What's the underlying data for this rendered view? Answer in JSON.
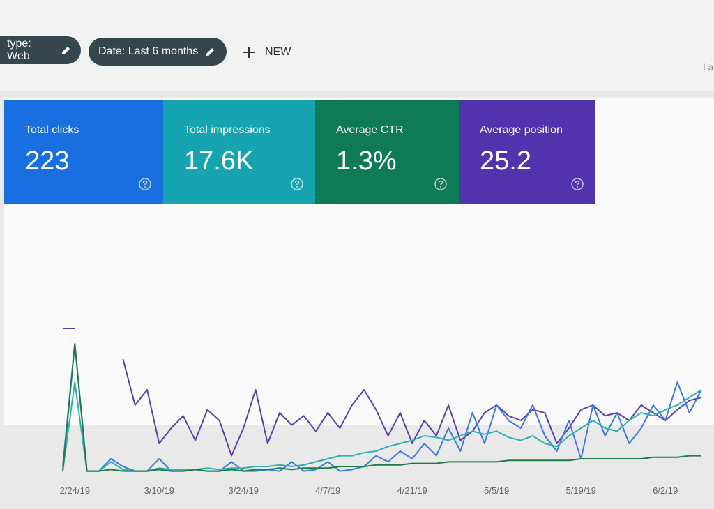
{
  "filters": [
    "type: Web",
    "Date: Last 6 months"
  ],
  "new_button": "NEW",
  "header_right_text": "La",
  "metrics": [
    {
      "label": "Total clicks",
      "value": "223",
      "color": "#1a6fe0"
    },
    {
      "label": "Total impressions",
      "value": "17.6K",
      "color": "#16a5b0"
    },
    {
      "label": "Average CTR",
      "value": "1.3%",
      "color": "#0e7a56"
    },
    {
      "label": "Average position",
      "value": "25.2",
      "color": "#5133ad"
    }
  ],
  "performance_chart": {
    "type": "line",
    "ylim": [
      0,
      100
    ],
    "x_labels": [
      "2/24/19",
      "3/10/19",
      "3/24/19",
      "4/7/19",
      "4/21/19",
      "5/5/19",
      "5/19/19",
      "6/2/19"
    ],
    "series": [
      {
        "color": "#5b3fb0",
        "values": [
          95,
          95,
          null,
          null,
          null,
          75,
          45,
          55,
          20,
          30,
          38,
          22,
          42,
          35,
          12,
          30,
          55,
          20,
          40,
          32,
          38,
          28,
          40,
          30,
          45,
          55,
          42,
          25,
          40,
          20,
          35,
          25,
          45,
          22,
          28,
          40,
          45,
          38,
          35,
          42,
          40,
          20,
          30,
          42,
          45,
          38,
          40,
          35,
          45,
          40,
          35,
          42,
          48,
          50
        ]
      },
      {
        "color": "#3b7be0",
        "values": [
          5,
          85,
          2,
          2,
          10,
          5,
          2,
          2,
          10,
          2,
          2,
          3,
          2,
          2,
          8,
          2,
          2,
          3,
          2,
          8,
          2,
          3,
          8,
          2,
          3,
          5,
          12,
          8,
          15,
          10,
          20,
          12,
          30,
          15,
          40,
          20,
          45,
          35,
          30,
          45,
          25,
          15,
          35,
          10,
          45,
          25,
          40,
          20,
          30,
          45,
          35,
          60,
          40,
          55
        ]
      },
      {
        "color": "#2fb0b0",
        "values": [
          2,
          60,
          2,
          2,
          8,
          3,
          2,
          2,
          4,
          3,
          3,
          3,
          4,
          3,
          4,
          4,
          5,
          5,
          6,
          5,
          6,
          8,
          10,
          12,
          12,
          14,
          15,
          18,
          20,
          22,
          25,
          24,
          22,
          25,
          28,
          26,
          28,
          24,
          22,
          25,
          20,
          18,
          25,
          30,
          35,
          30,
          28,
          35,
          40,
          38,
          42,
          45,
          50,
          55
        ]
      },
      {
        "color": "#1f7a4a",
        "values": [
          2,
          85,
          2,
          2,
          3,
          2,
          2,
          2,
          3,
          2,
          2,
          3,
          2,
          2,
          3,
          2,
          3,
          3,
          4,
          3,
          4,
          4,
          4,
          5,
          5,
          5,
          6,
          6,
          6,
          7,
          7,
          7,
          8,
          8,
          8,
          8,
          8,
          9,
          9,
          9,
          9,
          9,
          9,
          10,
          10,
          10,
          10,
          10,
          10,
          11,
          11,
          11,
          12,
          12
        ]
      }
    ]
  }
}
